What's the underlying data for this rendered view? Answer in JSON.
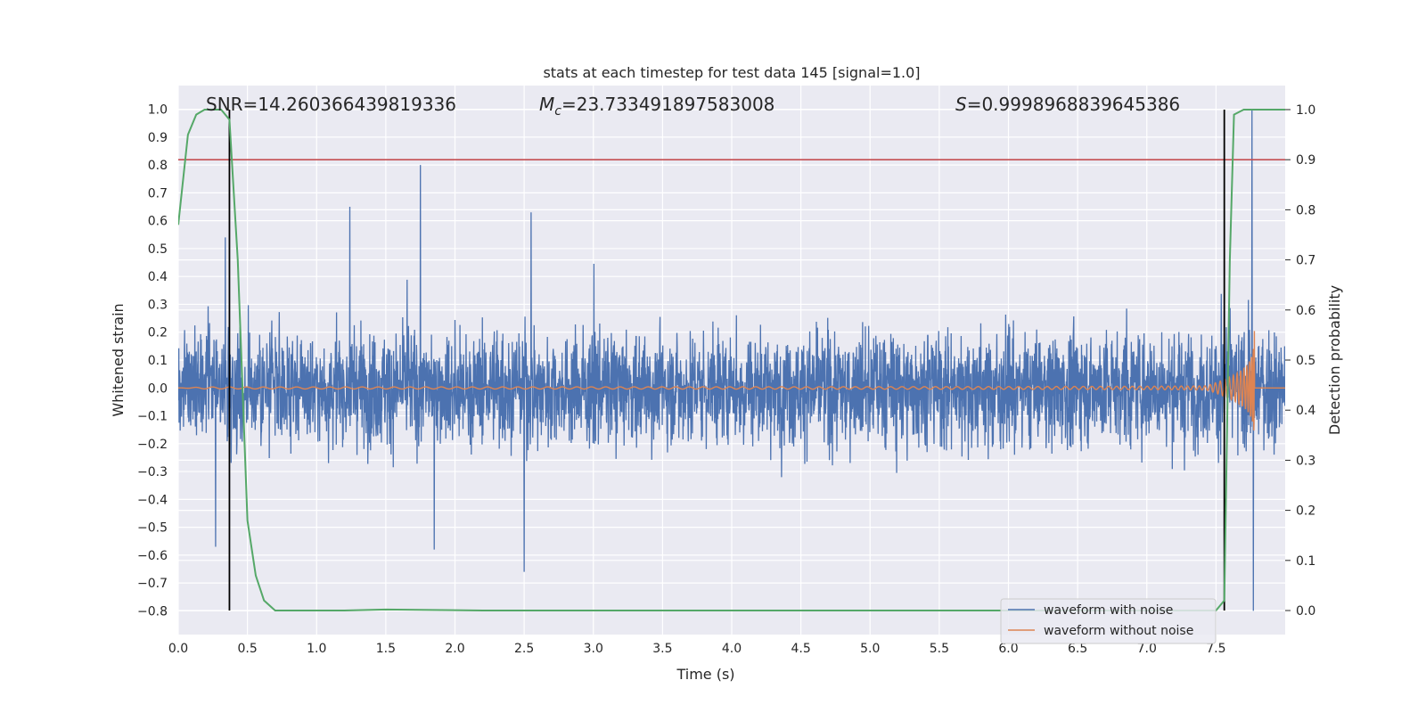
{
  "chart_data": {
    "type": "line",
    "title": "stats at each timestep for test data 145 [signal=1.0]",
    "xlabel": "Time (s)",
    "ylabel": "Whitened strain",
    "y2label": "Detection probability",
    "xlim": [
      0.0,
      8.0
    ],
    "ylim": [
      -0.885,
      1.085
    ],
    "y2lim": [
      -0.048,
      1.048
    ],
    "x_ticks": [
      "0.0",
      "0.5",
      "1.0",
      "1.5",
      "2.0",
      "2.5",
      "3.0",
      "3.5",
      "4.0",
      "4.5",
      "5.0",
      "5.5",
      "6.0",
      "6.5",
      "7.0",
      "7.5"
    ],
    "y_ticks": [
      "1.0",
      "0.9",
      "0.8",
      "0.7",
      "0.6",
      "0.5",
      "0.4",
      "0.3",
      "0.2",
      "0.1",
      "0.0",
      "−0.1",
      "−0.2",
      "−0.3",
      "−0.4",
      "−0.5",
      "−0.6",
      "−0.7",
      "−0.8"
    ],
    "y2_ticks": [
      "1.0",
      "0.9",
      "0.8",
      "0.7",
      "0.6",
      "0.5",
      "0.4",
      "0.3",
      "0.2",
      "0.1",
      "0.0"
    ],
    "annotations": {
      "snr": "SNR=14.260366439819336",
      "mc_symbol": "M",
      "mc_sub": "c",
      "mc_value": "=23.733491897583008",
      "s_symbol": "S",
      "s_value": "=0.9998968839645386"
    },
    "legend": {
      "placement": "lower-right",
      "entries": [
        "waveform with noise",
        "waveform without noise"
      ]
    },
    "threshold_y2": 0.9,
    "vertical_lines_x": [
      0.37,
      7.56
    ],
    "colors": {
      "noise": "#4c72b0",
      "clean": "#dd8452",
      "probability": "#55a868",
      "threshold": "#c44e52",
      "vline": "#000000",
      "background": "#eaeaf2",
      "grid": "#ffffff"
    },
    "series": [
      {
        "name": "waveform with noise",
        "axis": "left",
        "description_kind": "noise",
        "amplitude": 0.17,
        "spikes": [
          [
            1.75,
            0.8
          ],
          [
            2.5,
            -0.66
          ],
          [
            2.55,
            0.63
          ],
          [
            1.85,
            -0.58
          ],
          [
            7.76,
            1.0
          ],
          [
            7.77,
            -0.8
          ],
          [
            0.27,
            -0.57
          ],
          [
            0.34,
            0.54
          ],
          [
            1.24,
            0.65
          ]
        ]
      },
      {
        "name": "waveform without noise",
        "axis": "left",
        "description_kind": "chirp",
        "end_time": 7.78
      },
      {
        "name": "detection probability",
        "axis": "right",
        "x": [
          0.0,
          0.07,
          0.13,
          0.19,
          0.25,
          0.31,
          0.37,
          0.43,
          0.5,
          0.56,
          0.62,
          0.7,
          0.9,
          1.2,
          1.5,
          1.9,
          2.2,
          3.0,
          4.0,
          5.0,
          6.0,
          7.0,
          7.5,
          7.56,
          7.6,
          7.63,
          7.7,
          7.8,
          8.0
        ],
        "y": [
          0.77,
          0.95,
          0.99,
          1.0,
          1.0,
          1.0,
          0.98,
          0.7,
          0.18,
          0.07,
          0.02,
          0.0,
          0.0,
          0.0,
          0.002,
          0.001,
          0.0,
          0.0,
          0.0,
          0.0,
          0.0,
          0.0,
          0.0,
          0.02,
          0.7,
          0.99,
          1.0,
          1.0,
          1.0
        ]
      }
    ]
  }
}
